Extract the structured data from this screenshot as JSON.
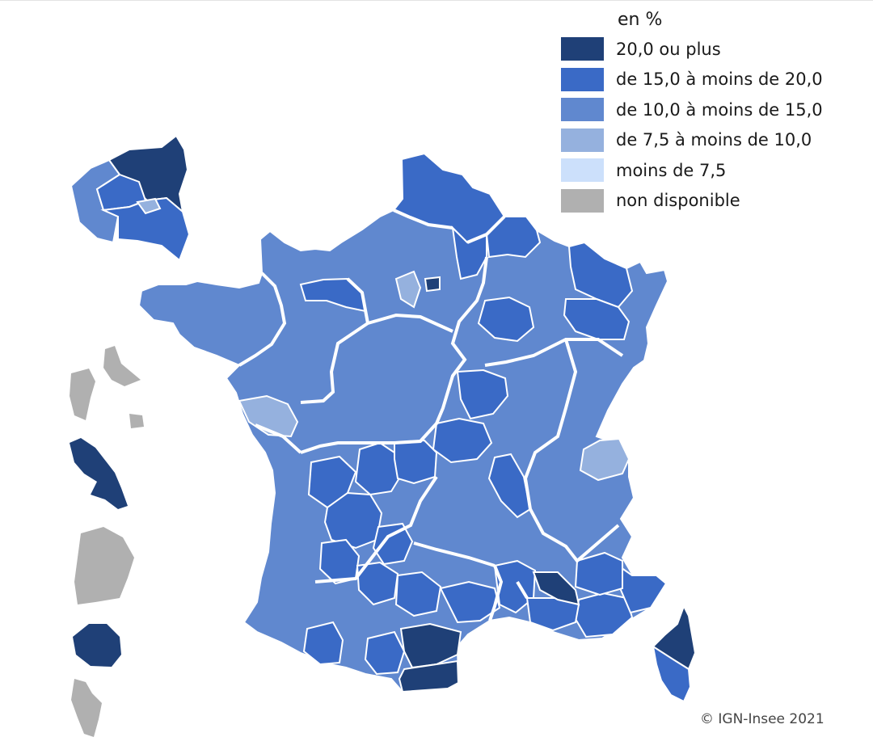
{
  "legend": {
    "title": "en %",
    "items": [
      {
        "label": "20,0 ou plus",
        "color": "#1f4077"
      },
      {
        "label": "de 15,0 à moins de 20,0",
        "color": "#3a6ac6"
      },
      {
        "label": "de 10,0 à moins de 15,0",
        "color": "#6088cf"
      },
      {
        "label": "de 7,5 à moins de 10,0",
        "color": "#95b1de"
      },
      {
        "label": "moins de 7,5",
        "color": "#cce0fb"
      },
      {
        "label": "non disponible",
        "color": "#b0b0b0"
      }
    ]
  },
  "copyright": "© IGN-Insee 2021",
  "map_data": {
    "regions": [
      {
        "name": "Île-de-France",
        "class": "de 15,0 à moins de 20,0"
      },
      {
        "name": "Corse",
        "class": "20,0 ou plus"
      },
      {
        "name": "Guadeloupe",
        "class": "non disponible"
      },
      {
        "name": "Martinique",
        "class": "20,0 ou plus"
      },
      {
        "name": "Guyane",
        "class": "non disponible"
      },
      {
        "name": "La Réunion",
        "class": "20,0 ou plus"
      },
      {
        "name": "Mayotte",
        "class": "non disponible"
      }
    ]
  }
}
